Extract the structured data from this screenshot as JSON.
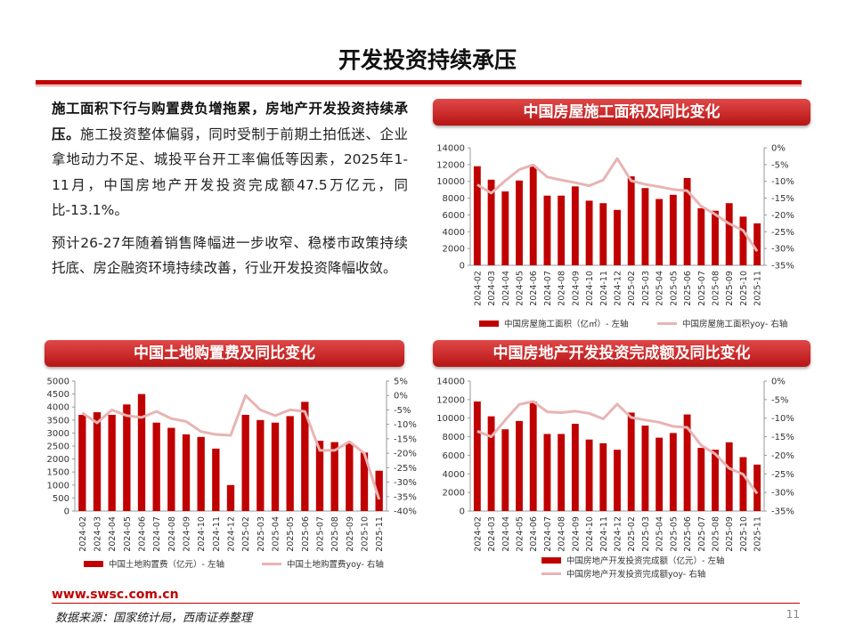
{
  "slide": {
    "title": "开发投资持续承压",
    "page_number": "11",
    "footer_url": "www.swsc.com.cn",
    "footer_source": "数据来源：国家统计局，西南证券整理"
  },
  "text": {
    "p1_lead": "施工面积下行与购置费负增拖累，房地产开发投资持续承压。",
    "p1_body": "施工投资整体偏弱，同时受制于前期土拍低迷、企业拿地动力不足、城投平台开工率偏低等因素，2025年1-11月，中国房地产开发投资完成额47.5万亿元，同比-13.1%。",
    "p2": "预计26-27年随着销售降幅进一步收窄、稳楼市政策持续托底、房企融资环境持续改善，行业开发投资降幅收敛。"
  },
  "colors": {
    "bar": "#c00000",
    "line": "#e8b4b4",
    "header": "#c8201e"
  },
  "chart_data": [
    {
      "id": "construction",
      "type": "bar",
      "title": "中国房屋施工面积及同比变化",
      "categories": [
        "2024-02",
        "2024-03",
        "2024-04",
        "2024-05",
        "2024-06",
        "2024-07",
        "2024-08",
        "2024-09",
        "2024-10",
        "2024-11",
        "2024-12",
        "2025-02",
        "2025-03",
        "2025-04",
        "2025-05",
        "2025-06",
        "2025-07",
        "2025-08",
        "2025-09",
        "2025-10",
        "2025-11"
      ],
      "series": [
        {
          "name": "中国房屋施工面积（亿㎡）- 左轴",
          "axis": "left",
          "kind": "bar",
          "values": [
            11800,
            10200,
            8800,
            10100,
            11800,
            8300,
            8300,
            9400,
            7700,
            7400,
            6600,
            10600,
            9200,
            7900,
            8400,
            10400,
            6800,
            6500,
            7400,
            5800,
            5000
          ]
        },
        {
          "name": "中国房屋施工面积yoy- 右轴",
          "axis": "right",
          "kind": "line",
          "values": [
            -11,
            -13.5,
            -9.8,
            -6.5,
            -5.1,
            -8.7,
            -9.6,
            -10.4,
            -11.3,
            -9.6,
            -3.2,
            -9.8,
            -10.9,
            -11.6,
            -12.4,
            -12.8,
            -17.4,
            -19.8,
            -22.6,
            -24.6,
            -30.8
          ]
        }
      ],
      "left_axis": {
        "min": 0,
        "max": 14000,
        "ticks": [
          "0",
          "2000",
          "4000",
          "6000",
          "8000",
          "10000",
          "12000",
          "14000"
        ]
      },
      "right_axis": {
        "min": -35,
        "max": 0,
        "ticks": [
          "0%",
          "-5%",
          "-10%",
          "-15%",
          "-20%",
          "-25%",
          "-30%",
          "-35%"
        ]
      }
    },
    {
      "id": "land",
      "type": "bar",
      "title": "中国土地购置费及同比变化",
      "categories": [
        "2024-02",
        "2024-03",
        "2024-04",
        "2024-05",
        "2024-06",
        "2024-07",
        "2024-08",
        "2024-09",
        "2024-10",
        "2024-11",
        "2024-12",
        "2025-02",
        "2025-03",
        "2025-04",
        "2025-05",
        "2025-06",
        "2025-07",
        "2025-08",
        "2025-09",
        "2025-10",
        "2025-11"
      ],
      "series": [
        {
          "name": "中国土地购置费（亿元）- 左轴",
          "axis": "left",
          "kind": "bar",
          "values": [
            3700,
            3800,
            3700,
            4100,
            4500,
            3400,
            3200,
            2950,
            2850,
            2400,
            1000,
            3700,
            3500,
            3400,
            3650,
            4200,
            2700,
            2650,
            2600,
            2250,
            1550
          ]
        },
        {
          "name": "中国土地购置费yoy- 右轴",
          "axis": "right",
          "kind": "line",
          "values": [
            -6,
            -9.5,
            -5,
            -7,
            -7.6,
            -5.5,
            -8,
            -9,
            -12.5,
            -13.5,
            -13.8,
            0,
            -5,
            -7,
            -5,
            -5.5,
            -19,
            -19,
            -16,
            -20,
            -36
          ]
        }
      ],
      "left_axis": {
        "min": 0,
        "max": 5000,
        "ticks": [
          "0",
          "500",
          "1000",
          "1500",
          "2000",
          "2500",
          "3000",
          "3500",
          "4000",
          "4500",
          "5000"
        ]
      },
      "right_axis": {
        "min": -40,
        "max": 5,
        "ticks": [
          "5%",
          "0%",
          "-5%",
          "-10%",
          "-15%",
          "-20%",
          "-25%",
          "-30%",
          "-35%",
          "-40%"
        ]
      }
    },
    {
      "id": "investment",
      "type": "bar",
      "title": "中国房地产开发投资完成额及同比变化",
      "categories": [
        "2024-02",
        "2024-03",
        "2024-04",
        "2024-05",
        "2024-06",
        "2024-07",
        "2024-08",
        "2024-09",
        "2024-10",
        "2024-11",
        "2024-12",
        "2025-02",
        "2025-03",
        "2025-04",
        "2025-05",
        "2025-06",
        "2025-07",
        "2025-08",
        "2025-09",
        "2025-10",
        "2025-11"
      ],
      "series": [
        {
          "name": "中国房地产开发投资完成额（亿元）- 左轴",
          "axis": "left",
          "kind": "bar",
          "values": [
            11800,
            10200,
            8800,
            9700,
            11800,
            8300,
            8300,
            9400,
            7700,
            7300,
            6600,
            10600,
            9200,
            7900,
            8400,
            10400,
            6800,
            6600,
            7400,
            5800,
            5000
          ]
        },
        {
          "name": "中国房地产开发投资完成额yoy- 右轴",
          "axis": "right",
          "kind": "line",
          "values": [
            -13.5,
            -15,
            -10.5,
            -6.3,
            -5.5,
            -8.3,
            -8.5,
            -8.1,
            -8.7,
            -10.2,
            -6.2,
            -9.8,
            -10.5,
            -11.1,
            -12.2,
            -12.5,
            -17.3,
            -19.6,
            -23.5,
            -25.1,
            -30.3
          ]
        }
      ],
      "left_axis": {
        "min": 0,
        "max": 14000,
        "ticks": [
          "0",
          "2000",
          "4000",
          "6000",
          "8000",
          "10000",
          "12000",
          "14000"
        ]
      },
      "right_axis": {
        "min": -35,
        "max": 0,
        "ticks": [
          "0%",
          "-5%",
          "-10%",
          "-15%",
          "-20%",
          "-25%",
          "-30%",
          "-35%"
        ]
      }
    }
  ]
}
